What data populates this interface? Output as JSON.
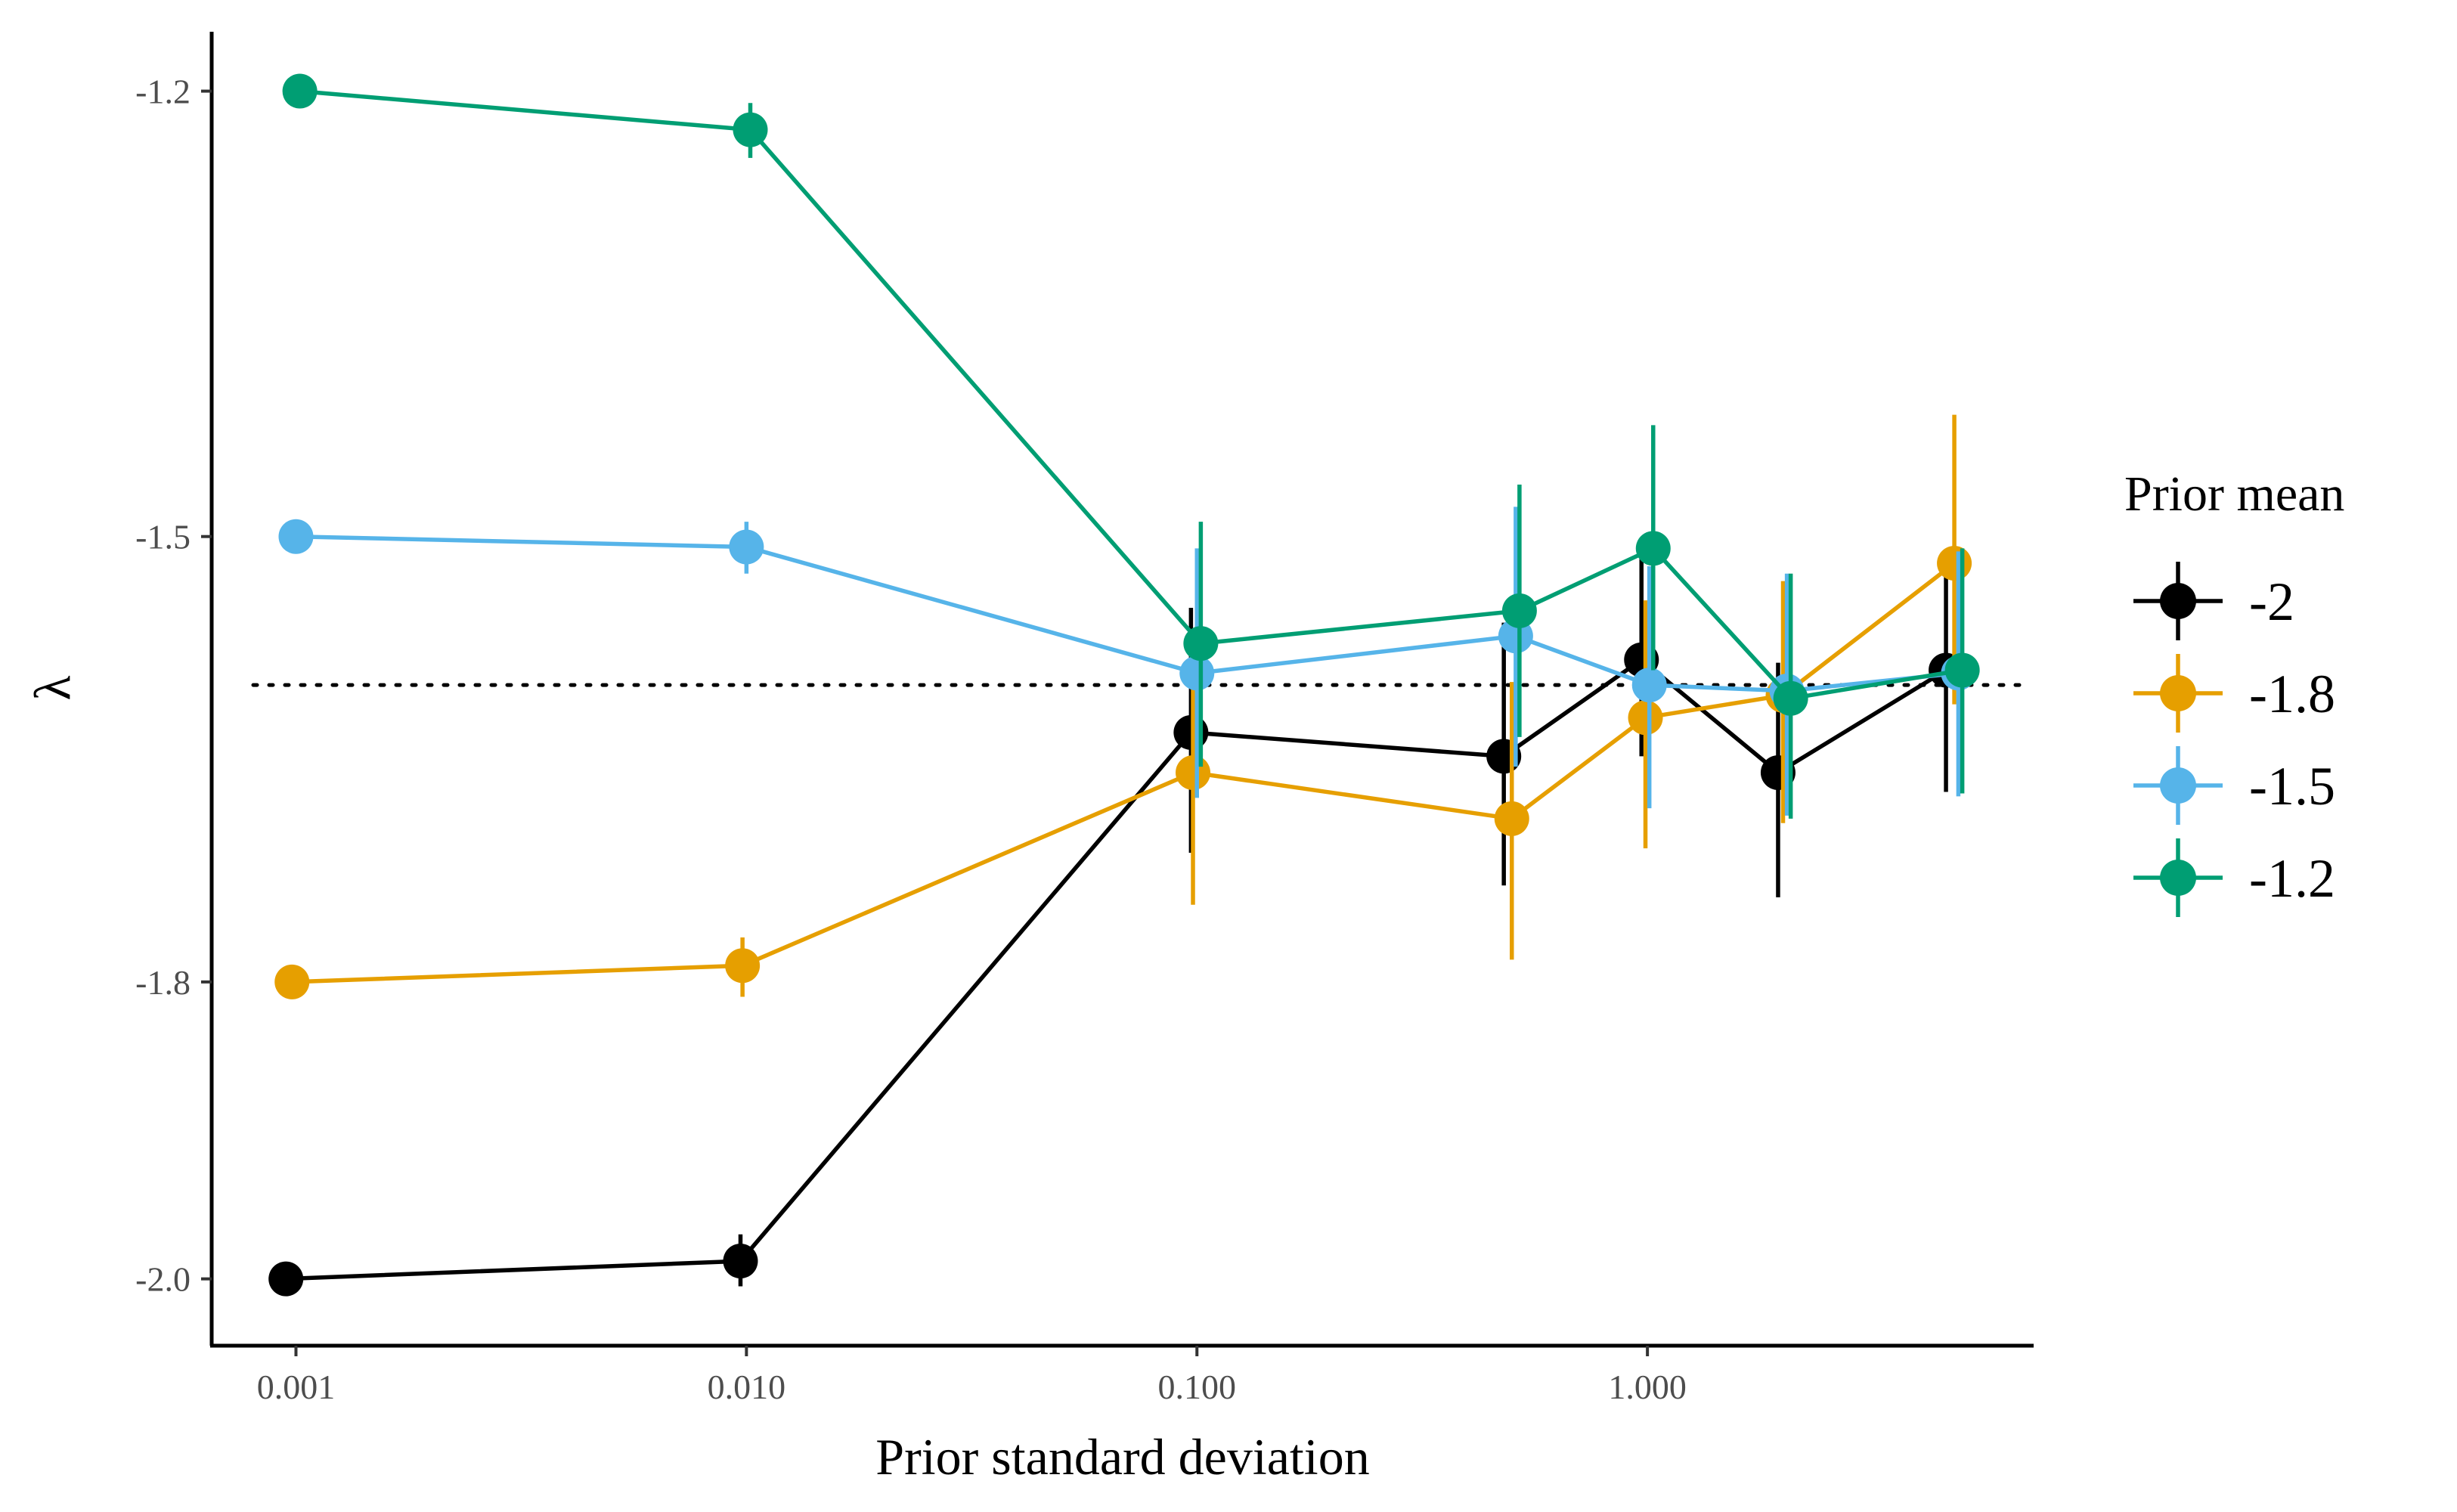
{
  "chart_data": {
    "type": "line",
    "xlabel": "Prior standard deviation",
    "ylabel": "λ",
    "x_scale": "log10",
    "xlim": [
      0.00065,
      7.2
    ],
    "ylim": [
      -2.045,
      -1.16
    ],
    "x_ticks": [
      0.001,
      0.01,
      0.1,
      1
    ],
    "x_tick_labels": [
      "0.001",
      "0.010",
      "0.100",
      "1.000"
    ],
    "y_ticks": [
      -2.0,
      -1.8,
      -1.5,
      -1.2
    ],
    "y_tick_labels": [
      "-2.0",
      "-1.8",
      "-1.5",
      "-1.2"
    ],
    "reference_line": {
      "y": -1.6,
      "style": "dotted"
    },
    "grid": false,
    "legend": {
      "title": "Prior mean",
      "position": "right"
    },
    "series": [
      {
        "name": "-2",
        "color": "#000000",
        "x": [
          0.00095,
          0.0097,
          0.097,
          0.48,
          0.97,
          1.95,
          4.6
        ],
        "y": [
          -2.0,
          -1.988,
          -1.632,
          -1.648,
          -1.583,
          -1.659,
          -1.59
        ],
        "lower": [
          -2.0,
          -2.005,
          -1.713,
          -1.735,
          -1.648,
          -1.743,
          -1.672
        ],
        "upper": [
          -2.0,
          -1.97,
          -1.548,
          -1.558,
          -1.508,
          -1.585,
          -1.51
        ]
      },
      {
        "name": "-1.8",
        "color": "#E69F00",
        "x": [
          0.00098,
          0.0098,
          0.098,
          0.5,
          0.99,
          2.0,
          4.8
        ],
        "y": [
          -1.8,
          -1.789,
          -1.659,
          -1.69,
          -1.622,
          -1.607,
          -1.518
        ],
        "lower": [
          -1.8,
          -1.81,
          -1.748,
          -1.785,
          -1.71,
          -1.693,
          -1.613
        ],
        "upper": [
          -1.8,
          -1.77,
          -1.575,
          -1.598,
          -1.543,
          -1.53,
          -1.418
        ]
      },
      {
        "name": "-1.5",
        "color": "#56B4E9",
        "x": [
          0.001,
          0.01,
          0.1,
          0.51,
          1.01,
          2.04,
          4.9
        ],
        "y": [
          -1.5,
          -1.507,
          -1.592,
          -1.567,
          -1.6,
          -1.604,
          -1.592
        ],
        "lower": [
          -1.5,
          -1.525,
          -1.676,
          -1.655,
          -1.683,
          -1.688,
          -1.675
        ],
        "upper": [
          -1.5,
          -1.49,
          -1.508,
          -1.48,
          -1.52,
          -1.525,
          -1.51
        ]
      },
      {
        "name": "-1.2",
        "color": "#009E73",
        "x": [
          0.00102,
          0.0102,
          0.102,
          0.52,
          1.03,
          2.08,
          5.0
        ],
        "y": [
          -1.2,
          -1.226,
          -1.572,
          -1.55,
          -1.508,
          -1.609,
          -1.59
        ],
        "lower": [
          -1.2,
          -1.245,
          -1.655,
          -1.635,
          -1.59,
          -1.69,
          -1.673
        ],
        "upper": [
          -1.2,
          -1.208,
          -1.49,
          -1.465,
          -1.425,
          -1.525,
          -1.508
        ]
      }
    ]
  }
}
